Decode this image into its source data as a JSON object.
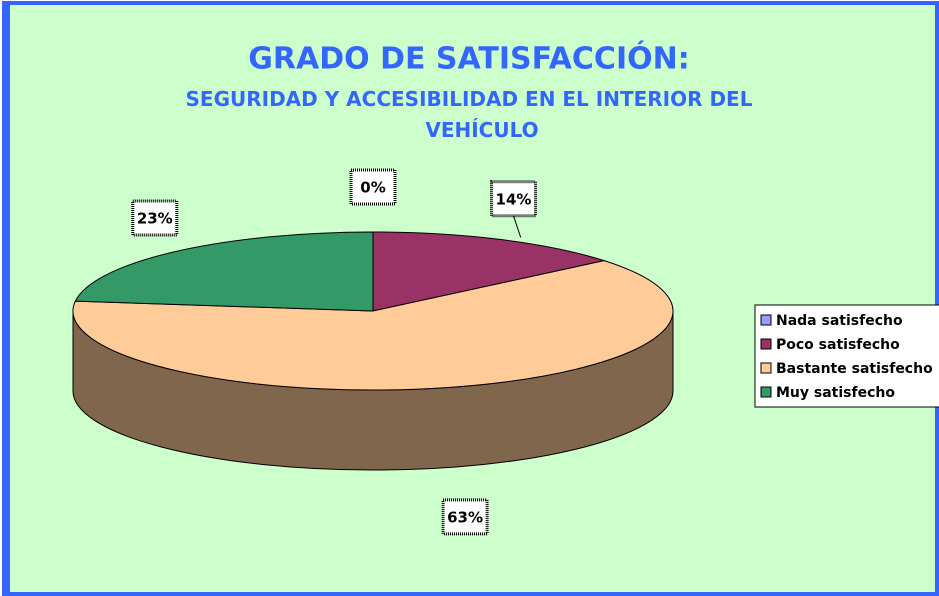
{
  "chart_data": {
    "type": "pie",
    "title": "GRADO DE SATISFACCIÓN:",
    "subtitle": "SEGURIDAD Y ACCESIBILIDAD EN EL INTERIOR DEL VEHÍCULO",
    "categories": [
      "Nada satisfecho",
      "Poco satisfecho",
      "Bastante satisfecho",
      "Muy satisfecho"
    ],
    "values": [
      0,
      14,
      63,
      23
    ],
    "value_labels": [
      "0%",
      "14%",
      "63%",
      "23%"
    ],
    "colors": [
      "#9999ff",
      "#993366",
      "#ffcc99",
      "#339966"
    ],
    "legend": "right"
  }
}
